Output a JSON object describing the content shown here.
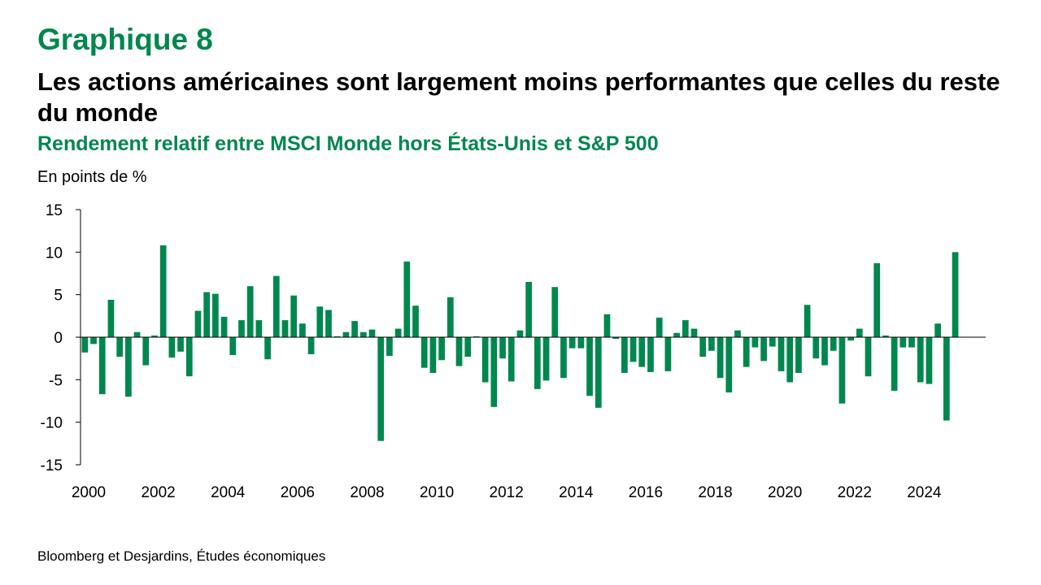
{
  "header": {
    "chart_number": "Graphique 8",
    "title": "Les actions américaines sont largement moins performantes que celles du reste du monde",
    "subtitle": "Rendement relatif entre MSCI Monde hors États-Unis et S&P 500",
    "unit": "En points de %"
  },
  "footer": {
    "source": "Bloomberg et Desjardins, Études économiques"
  },
  "colors": {
    "bar": "#00874E",
    "title_accent": "#00874E"
  },
  "chart_data": {
    "type": "bar",
    "title": "Rendement relatif entre MSCI Monde hors États-Unis et S&P 500",
    "ylabel": "En points de %",
    "xlabel": "",
    "frequency": "quarterly",
    "first_period": "2000 T1",
    "ylim": [
      -15,
      15
    ],
    "yticks": [
      15,
      10,
      5,
      0,
      -5,
      -10,
      -15
    ],
    "xtick_labels": [
      "2000",
      "2002",
      "2004",
      "2006",
      "2008",
      "2010",
      "2012",
      "2014",
      "2016",
      "2018",
      "2020",
      "2022",
      "2024"
    ],
    "grid": false,
    "legend": "none",
    "values": [
      -1.8,
      -0.8,
      -6.7,
      4.4,
      -2.3,
      -7.0,
      0.6,
      -3.3,
      0.2,
      10.8,
      -2.4,
      -1.7,
      -4.6,
      3.1,
      5.3,
      5.1,
      2.4,
      -2.1,
      2.0,
      6.0,
      2.0,
      -2.6,
      7.2,
      2.0,
      4.9,
      1.6,
      -2.0,
      3.6,
      3.2,
      0.1,
      0.6,
      1.9,
      0.6,
      0.9,
      -12.2,
      -2.2,
      1.0,
      8.9,
      3.7,
      -3.6,
      -4.2,
      -2.7,
      4.7,
      -3.4,
      -2.3,
      0.1,
      -5.3,
      -8.2,
      -2.5,
      -5.2,
      0.8,
      6.5,
      -6.1,
      -5.1,
      5.9,
      -4.8,
      -1.3,
      -1.3,
      -6.9,
      -8.3,
      2.7,
      -0.2,
      -4.2,
      -2.9,
      -3.5,
      -4.1,
      2.3,
      -4.0,
      0.5,
      2.0,
      1.0,
      -2.3,
      -1.6,
      -4.8,
      -6.5,
      0.8,
      -3.5,
      -1.2,
      -2.8,
      -1.1,
      -4.0,
      -5.3,
      -4.2,
      3.8,
      -2.5,
      -3.3,
      -1.6,
      -7.8,
      -0.4,
      1.0,
      -4.6,
      8.7,
      0.2,
      -6.3,
      -1.2,
      -1.2,
      -5.3,
      -5.5,
      1.6,
      -9.8,
      10.0
    ]
  }
}
